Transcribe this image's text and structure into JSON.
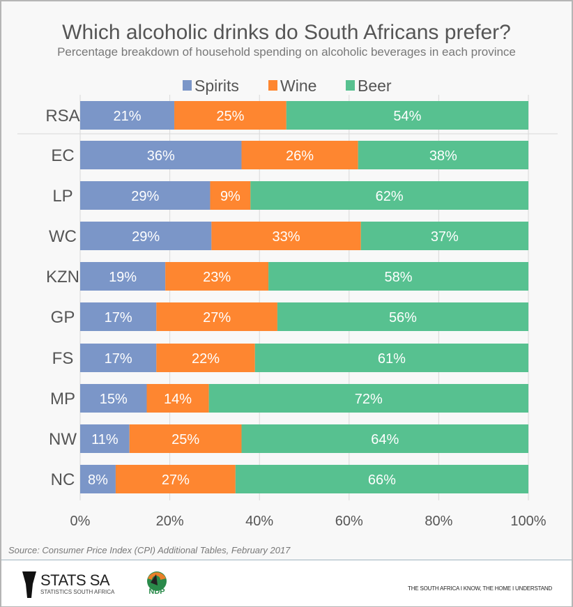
{
  "chart_data": {
    "type": "bar",
    "orientation": "horizontal",
    "stacked": "percent",
    "title": "Which alcoholic drinks do South Africans prefer?",
    "subtitle": "Percentage breakdown of household spending on alcoholic beverages in each province",
    "categories": [
      "RSA",
      "EC",
      "LP",
      "WC",
      "KZN",
      "GP",
      "FS",
      "MP",
      "NW",
      "NC"
    ],
    "series": [
      {
        "name": "Spirits",
        "color": "#7b96c8",
        "values": [
          21,
          36,
          29,
          29,
          19,
          17,
          17,
          15,
          11,
          8
        ]
      },
      {
        "name": "Wine",
        "color": "#fe8630",
        "values": [
          25,
          26,
          9,
          33,
          23,
          27,
          22,
          14,
          25,
          27
        ]
      },
      {
        "name": "Beer",
        "color": "#57c190",
        "values": [
          54,
          38,
          62,
          37,
          58,
          56,
          61,
          72,
          64,
          66
        ]
      }
    ],
    "xlim": [
      0,
      100
    ],
    "xticks": [
      "0%",
      "20%",
      "40%",
      "60%",
      "80%",
      "100%"
    ],
    "grid": true,
    "legend_position": "top",
    "xlabel": "",
    "ylabel": ""
  },
  "source": "Source: Consumer Price Index (CPI) Additional Tables, February 2017",
  "footer": {
    "logo": "STATS SA",
    "logo_sub": "STATISTICS SOUTH AFRICA",
    "ndp_logo": "NDP 2030",
    "tagline": "THE SOUTH AFRICA I KNOW, THE HOME I UNDERSTAND"
  }
}
